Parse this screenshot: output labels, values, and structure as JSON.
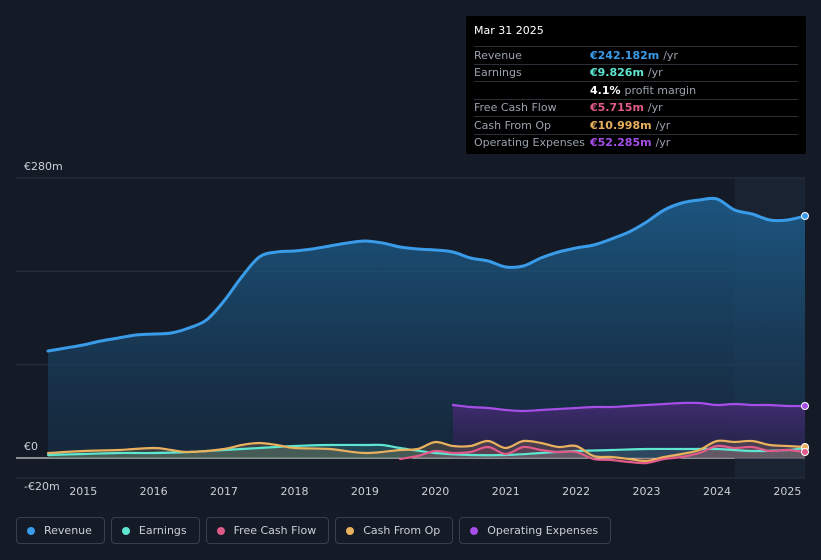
{
  "tooltip": {
    "date": "Mar 31 2025",
    "rows": [
      {
        "label": "Revenue",
        "value": "€242.182m",
        "unit": "/yr",
        "color": "#3a9be8"
      },
      {
        "label": "Earnings",
        "value": "€9.826m",
        "unit": "/yr",
        "color": "#5ee6d0"
      },
      {
        "label": "",
        "value": "4.1%",
        "unit": "profit margin",
        "color": "#ffffff"
      },
      {
        "label": "Free Cash Flow",
        "value": "€5.715m",
        "unit": "/yr",
        "color": "#e05a8a"
      },
      {
        "label": "Cash From Op",
        "value": "€10.998m",
        "unit": "/yr",
        "color": "#e9b15e"
      },
      {
        "label": "Operating Expenses",
        "value": "€52.285m",
        "unit": "/yr",
        "color": "#a64ee8"
      }
    ]
  },
  "legend": [
    {
      "label": "Revenue",
      "color": "#3a9be8"
    },
    {
      "label": "Earnings",
      "color": "#5ee6d0"
    },
    {
      "label": "Free Cash Flow",
      "color": "#e05a8a"
    },
    {
      "label": "Cash From Op",
      "color": "#e9b15e"
    },
    {
      "label": "Operating Expenses",
      "color": "#a64ee8"
    }
  ],
  "chart_data": {
    "type": "area",
    "title": "",
    "xlabel": "",
    "ylabel": "",
    "xlim": [
      2014.5,
      2025.25
    ],
    "ylim": [
      -20,
      280
    ],
    "y_tick_labels": [
      {
        "value": 280,
        "label": "€280m"
      },
      {
        "value": 0,
        "label": "€0"
      },
      {
        "value": -20,
        "label": "-€20m"
      }
    ],
    "x_ticks": [
      2015,
      2016,
      2017,
      2018,
      2019,
      2020,
      2021,
      2022,
      2023,
      2024,
      2025
    ],
    "x_tick_labels": [
      "2015",
      "2016",
      "2017",
      "2018",
      "2019",
      "2020",
      "2021",
      "2022",
      "2023",
      "2024",
      "2025"
    ],
    "forecast_from": 2024.25,
    "series": [
      {
        "name": "Revenue",
        "color": "#3a9be8",
        "x": [
          2014.5,
          2014.75,
          2015,
          2015.25,
          2015.5,
          2015.75,
          2016,
          2016.25,
          2016.5,
          2016.75,
          2017,
          2017.25,
          2017.5,
          2017.75,
          2018,
          2018.25,
          2018.5,
          2018.75,
          2019,
          2019.25,
          2019.5,
          2019.75,
          2020,
          2020.25,
          2020.5,
          2020.75,
          2021,
          2021.25,
          2021.5,
          2021.75,
          2022,
          2022.25,
          2022.5,
          2022.75,
          2023,
          2023.25,
          2023.5,
          2023.75,
          2024,
          2024.25,
          2024.5,
          2024.75,
          2025,
          2025.25
        ],
        "values": [
          107,
          110,
          113,
          117,
          120,
          123,
          124,
          125,
          130,
          138,
          157,
          181,
          201,
          206,
          207,
          209,
          212,
          215,
          217,
          215,
          211,
          209,
          208,
          206,
          200,
          197,
          191,
          192,
          200,
          206,
          210,
          213,
          219,
          226,
          236,
          248,
          255,
          258,
          259,
          248,
          244,
          238,
          238,
          242
        ]
      },
      {
        "name": "Operating Expenses",
        "color": "#a64ee8",
        "x": [
          2020.25,
          2020.5,
          2020.75,
          2021,
          2021.25,
          2021.5,
          2021.75,
          2022,
          2022.25,
          2022.5,
          2022.75,
          2023,
          2023.25,
          2023.5,
          2023.75,
          2024,
          2024.25,
          2024.5,
          2024.75,
          2025,
          2025.25
        ],
        "values": [
          53,
          51,
          50,
          48,
          47,
          48,
          49,
          50,
          51,
          51,
          52,
          53,
          54,
          55,
          55,
          53,
          54,
          53,
          53,
          52,
          52
        ]
      },
      {
        "name": "Earnings",
        "color": "#5ee6d0",
        "x": [
          2014.5,
          2015,
          2015.5,
          2016,
          2016.5,
          2017,
          2017.5,
          2018,
          2018.5,
          2019,
          2019.25,
          2019.5,
          2020,
          2020.5,
          2021,
          2021.5,
          2022,
          2022.5,
          2023,
          2023.5,
          2024,
          2024.5,
          2025,
          2025.25
        ],
        "values": [
          3,
          4,
          5,
          5,
          6,
          8,
          10,
          12,
          13,
          13,
          13,
          10,
          5,
          3,
          3,
          5,
          7,
          8,
          9,
          9,
          9,
          7,
          8,
          10
        ]
      },
      {
        "name": "Cash From Op",
        "color": "#e9b15e",
        "x": [
          2014.5,
          2015,
          2015.5,
          2016,
          2016.25,
          2016.5,
          2017,
          2017.25,
          2017.5,
          2017.75,
          2018,
          2018.5,
          2019,
          2019.5,
          2019.75,
          2020,
          2020.25,
          2020.5,
          2020.75,
          2021,
          2021.25,
          2021.5,
          2021.75,
          2022,
          2022.25,
          2022.5,
          2022.75,
          2023,
          2023.25,
          2023.5,
          2023.75,
          2024,
          2024.25,
          2024.5,
          2024.75,
          2025,
          2025.25
        ],
        "values": [
          5,
          7,
          8,
          10,
          8,
          6,
          9,
          13,
          15,
          13,
          10,
          9,
          5,
          8,
          9,
          16,
          12,
          12,
          17,
          10,
          17,
          15,
          11,
          12,
          2,
          1,
          -1,
          -3,
          1,
          4,
          8,
          17,
          16,
          17,
          13,
          12,
          11
        ]
      },
      {
        "name": "Free Cash Flow",
        "color": "#e05a8a",
        "x": [
          2019.5,
          2019.75,
          2020,
          2020.25,
          2020.5,
          2020.75,
          2021,
          2021.25,
          2021.5,
          2021.75,
          2022,
          2022.25,
          2022.5,
          2022.75,
          2023,
          2023.25,
          2023.5,
          2023.75,
          2024,
          2024.25,
          2024.5,
          2024.75,
          2025,
          2025.25
        ],
        "values": [
          -1,
          2,
          7,
          5,
          6,
          11,
          4,
          11,
          8,
          6,
          6,
          -1,
          -2,
          -4,
          -5,
          -1,
          1,
          5,
          12,
          10,
          11,
          7,
          8,
          6
        ]
      }
    ]
  }
}
